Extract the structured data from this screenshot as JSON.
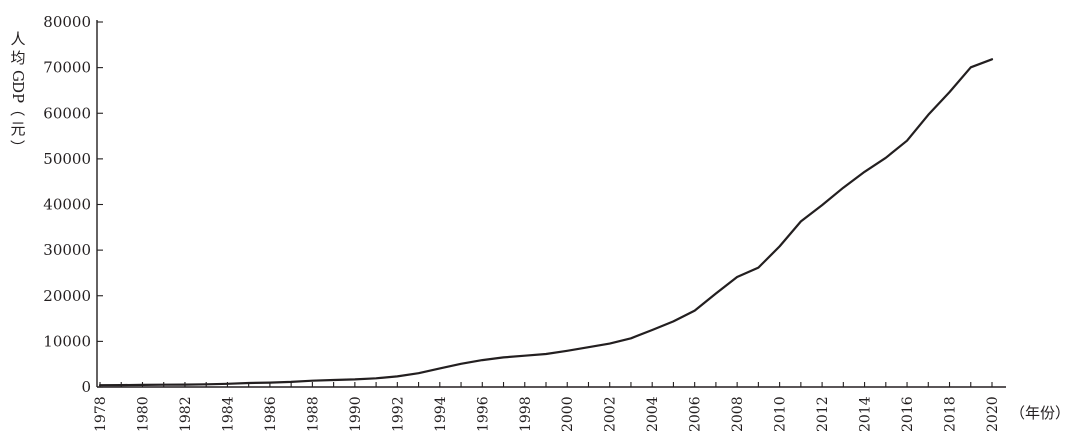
{
  "chart_data": {
    "type": "line",
    "title": "",
    "ylabel": "人均GDP（元）",
    "xlabel": "（年份）",
    "ylim": [
      0,
      80000
    ],
    "xlim": [
      1978,
      2020
    ],
    "yticks": [
      0,
      10000,
      20000,
      30000,
      40000,
      50000,
      60000,
      70000,
      80000
    ],
    "ytick_labels": [
      "0",
      "10000",
      "20000",
      "30000",
      "40000",
      "50000",
      "60000",
      "70000",
      "80000"
    ],
    "xtick_labels": [
      "1978",
      "1980",
      "1982",
      "1984",
      "1986",
      "1988",
      "1990",
      "1992",
      "1994",
      "1996",
      "1998",
      "2000",
      "2002",
      "2004",
      "2006",
      "2008",
      "2010",
      "2012",
      "2014",
      "2016",
      "2018",
      "2020"
    ],
    "grid": false,
    "legend": "none",
    "line_color": "#231f20",
    "series": [
      {
        "x": [
          1978,
          1979,
          1980,
          1981,
          1982,
          1983,
          1984,
          1985,
          1986,
          1987,
          1988,
          1989,
          1990,
          1991,
          1992,
          1993,
          1994,
          1995,
          1996,
          1997,
          1998,
          1999,
          2000,
          2001,
          2002,
          2003,
          2004,
          2005,
          2006,
          2007,
          2008,
          2009,
          2010,
          2011,
          2012,
          2013,
          2014,
          2015,
          2016,
          2017,
          2018,
          2019,
          2020
        ],
        "values": [
          385,
          423,
          468,
          497,
          533,
          588,
          702,
          866,
          973,
          1123,
          1378,
          1536,
          1663,
          1912,
          2334,
          3027,
          4081,
          5091,
          5898,
          6481,
          6860,
          7229,
          7942,
          8717,
          9506,
          10666,
          12487,
          14368,
          16738,
          20494,
          24100,
          26180,
          30808,
          36302,
          39874,
          43684,
          47173,
          50237,
          53980,
          59660,
          64644,
          70078,
          71828
        ]
      }
    ]
  }
}
